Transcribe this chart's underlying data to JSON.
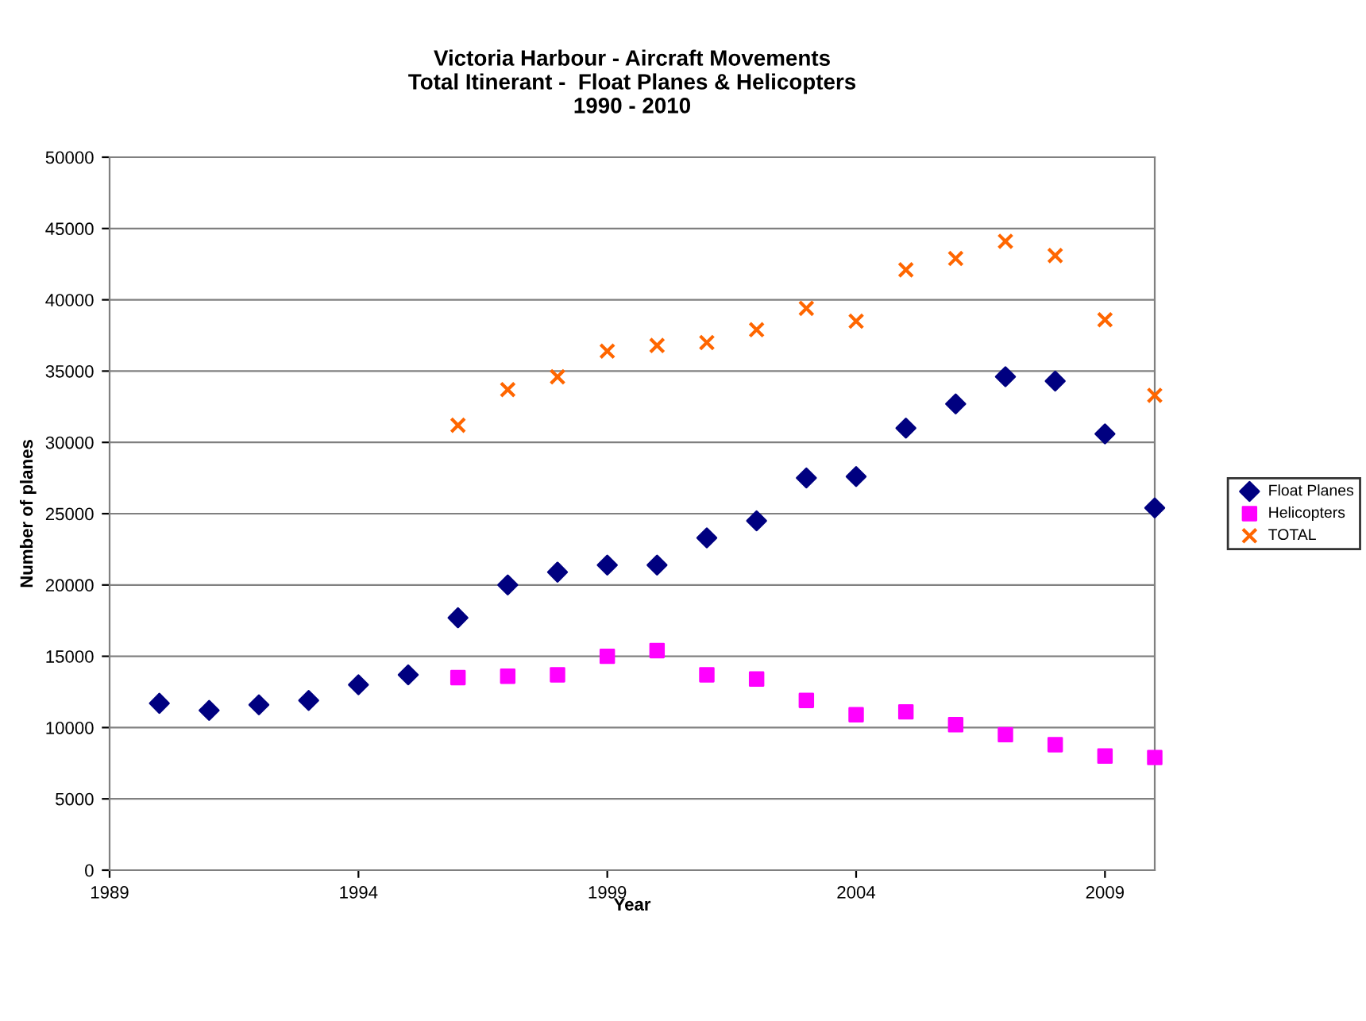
{
  "chart_data": {
    "type": "scatter",
    "title": "Victoria Harbour - Aircraft Movements\nTotal Itinerant -  Float Planes & Helicopters\n1990 - 2010",
    "xlabel": "Year",
    "ylabel": "Number of planes",
    "x": [
      1990,
      1991,
      1992,
      1993,
      1994,
      1995,
      1996,
      1997,
      1998,
      1999,
      2000,
      2001,
      2002,
      2003,
      2004,
      2005,
      2006,
      2007,
      2008,
      2009,
      2010
    ],
    "series": [
      {
        "name": "Float Planes",
        "color": "#000080",
        "marker": "diamond",
        "values": [
          11700,
          11200,
          11600,
          11900,
          13000,
          13700,
          17700,
          20000,
          20900,
          21400,
          21400,
          23300,
          24500,
          27500,
          27600,
          31000,
          32700,
          34600,
          34300,
          30600,
          25400
        ]
      },
      {
        "name": "Helicopters",
        "color": "#ff00ff",
        "marker": "square",
        "values": [
          null,
          null,
          null,
          null,
          null,
          null,
          13500,
          13600,
          13700,
          15000,
          15400,
          13700,
          13400,
          11900,
          10900,
          11100,
          10200,
          9500,
          8800,
          8000,
          7900
        ]
      },
      {
        "name": "TOTAL",
        "color": "#ff6600",
        "marker": "cross",
        "values": [
          null,
          null,
          null,
          null,
          null,
          null,
          31200,
          33700,
          34600,
          36400,
          36800,
          37000,
          37900,
          39400,
          38500,
          42100,
          42900,
          44100,
          43100,
          38600,
          33300
        ]
      }
    ],
    "xlim": [
      1989,
      2010
    ],
    "xticks": [
      1989,
      1994,
      1999,
      2004,
      2009
    ],
    "ylim": [
      0,
      50000
    ],
    "yticks": [
      0,
      5000,
      10000,
      15000,
      20000,
      25000,
      30000,
      35000,
      40000,
      45000,
      50000
    ],
    "grid": "y",
    "legend": "right"
  }
}
